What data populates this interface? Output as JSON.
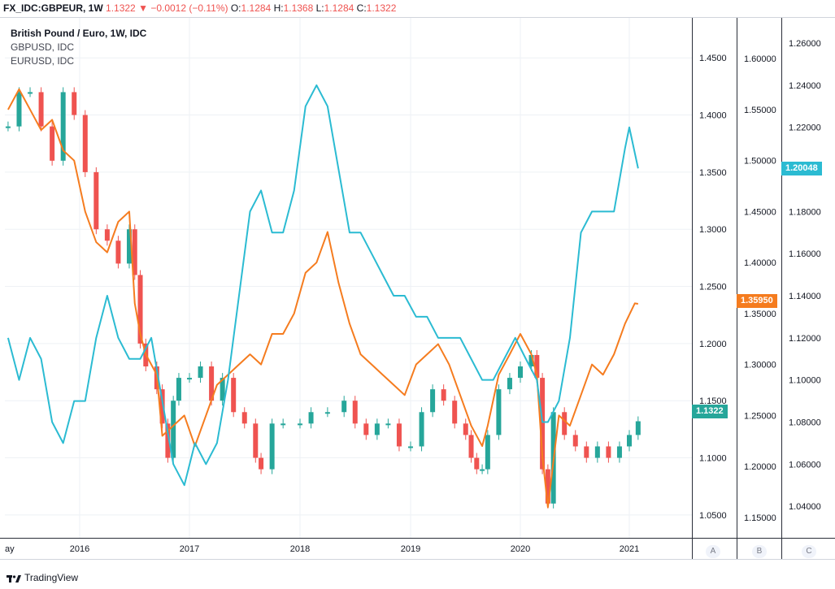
{
  "header": {
    "symbol": "FX_IDC:GBPEUR, 1W",
    "last": "1.1322",
    "change_arrow": "▼",
    "change": "−0.0012 (−0.11%)",
    "o_label": "O:",
    "o_value": "1.1284",
    "h_label": "H:",
    "h_value": "1.1368",
    "l_label": "L:",
    "l_value": "1.1284",
    "c_label": "C:",
    "c_value": "1.1322"
  },
  "legend": {
    "main": "British Pound / Euro, 1W, IDC",
    "series2": "GBPUSD, IDC",
    "series3": "EURUSD, IDC"
  },
  "scale_letters": {
    "a": "A",
    "b": "B",
    "c": "C"
  },
  "last_tags": {
    "gbpeur": "1.1322",
    "gbpusd": "1.35950",
    "eurusd": "1.20048"
  },
  "brand": "TradingView",
  "colors": {
    "up": "#26a69a",
    "down": "#ef5350",
    "gbpusd": "#f57c1f",
    "eurusd": "#2bbbd2",
    "grid": "#eef1f5",
    "axis_text": "#131722"
  },
  "chart_data": {
    "type": "line",
    "x_ticks": [
      "ay",
      "2016",
      "2017",
      "2018",
      "2019",
      "2020",
      "2021"
    ],
    "axes": {
      "A": {
        "ticks": [
          "1.4500",
          "1.4000",
          "1.3500",
          "1.3000",
          "1.2500",
          "1.2000",
          "1.1500",
          "1.1000",
          "1.0500"
        ],
        "range": [
          1.03,
          1.485
        ]
      },
      "B": {
        "ticks": [
          "1.60000",
          "1.55000",
          "1.50000",
          "1.45000",
          "1.40000",
          "1.35000",
          "1.30000",
          "1.25000",
          "1.20000",
          "1.15000"
        ],
        "range": [
          1.13,
          1.64
        ]
      },
      "C": {
        "ticks": [
          "1.26000",
          "1.24000",
          "1.22000",
          "1.20000",
          "1.18000",
          "1.16000",
          "1.14000",
          "1.12000",
          "1.10000",
          "1.08000",
          "1.06000",
          "1.04000"
        ],
        "range": [
          1.025,
          1.272
        ]
      }
    },
    "series": [
      {
        "name": "British Pound / Euro, 1W, IDC",
        "axis": "A",
        "style": "candles",
        "x": [
          2015.35,
          2015.45,
          2015.55,
          2015.65,
          2015.75,
          2015.85,
          2015.95,
          2016.05,
          2016.15,
          2016.25,
          2016.35,
          2016.45,
          2016.5,
          2016.55,
          2016.6,
          2016.7,
          2016.75,
          2016.8,
          2016.85,
          2016.9,
          2017.0,
          2017.1,
          2017.2,
          2017.3,
          2017.4,
          2017.5,
          2017.6,
          2017.65,
          2017.75,
          2017.85,
          2018.0,
          2018.1,
          2018.25,
          2018.4,
          2018.5,
          2018.6,
          2018.7,
          2018.8,
          2018.9,
          2019.0,
          2019.1,
          2019.2,
          2019.3,
          2019.4,
          2019.5,
          2019.55,
          2019.6,
          2019.65,
          2019.7,
          2019.8,
          2019.9,
          2020.0,
          2020.1,
          2020.15,
          2020.2,
          2020.25,
          2020.3,
          2020.4,
          2020.5,
          2020.6,
          2020.7,
          2020.8,
          2020.9,
          2021.0,
          2021.08
        ],
        "values": [
          1.39,
          1.42,
          1.42,
          1.39,
          1.36,
          1.42,
          1.4,
          1.35,
          1.3,
          1.29,
          1.27,
          1.3,
          1.26,
          1.2,
          1.18,
          1.16,
          1.13,
          1.1,
          1.15,
          1.17,
          1.17,
          1.18,
          1.15,
          1.17,
          1.14,
          1.13,
          1.1,
          1.09,
          1.13,
          1.13,
          1.13,
          1.14,
          1.14,
          1.15,
          1.13,
          1.12,
          1.13,
          1.13,
          1.11,
          1.11,
          1.14,
          1.16,
          1.15,
          1.13,
          1.12,
          1.1,
          1.09,
          1.09,
          1.12,
          1.16,
          1.17,
          1.18,
          1.19,
          1.17,
          1.09,
          1.06,
          1.14,
          1.12,
          1.11,
          1.1,
          1.11,
          1.1,
          1.11,
          1.12,
          1.132
        ]
      },
      {
        "name": "GBPUSD, IDC",
        "axis": "B",
        "x": [
          2015.35,
          2015.45,
          2015.55,
          2015.65,
          2015.75,
          2015.85,
          2015.95,
          2016.05,
          2016.15,
          2016.25,
          2016.35,
          2016.45,
          2016.5,
          2016.55,
          2016.6,
          2016.7,
          2016.75,
          2016.85,
          2016.95,
          2017.05,
          2017.15,
          2017.25,
          2017.35,
          2017.45,
          2017.55,
          2017.65,
          2017.75,
          2017.85,
          2017.95,
          2018.05,
          2018.15,
          2018.25,
          2018.35,
          2018.45,
          2018.55,
          2018.65,
          2018.75,
          2018.85,
          2018.95,
          2019.05,
          2019.15,
          2019.25,
          2019.35,
          2019.45,
          2019.55,
          2019.65,
          2019.7,
          2019.8,
          2019.9,
          2020.0,
          2020.1,
          2020.15,
          2020.2,
          2020.25,
          2020.35,
          2020.45,
          2020.55,
          2020.65,
          2020.75,
          2020.85,
          2020.95,
          2021.05,
          2021.08
        ],
        "values": [
          1.55,
          1.57,
          1.55,
          1.53,
          1.54,
          1.51,
          1.5,
          1.45,
          1.42,
          1.41,
          1.44,
          1.45,
          1.36,
          1.33,
          1.31,
          1.29,
          1.23,
          1.24,
          1.25,
          1.22,
          1.25,
          1.28,
          1.29,
          1.3,
          1.31,
          1.3,
          1.33,
          1.33,
          1.35,
          1.39,
          1.4,
          1.43,
          1.38,
          1.34,
          1.31,
          1.3,
          1.29,
          1.28,
          1.27,
          1.3,
          1.31,
          1.32,
          1.3,
          1.27,
          1.24,
          1.22,
          1.24,
          1.29,
          1.31,
          1.33,
          1.31,
          1.29,
          1.21,
          1.16,
          1.25,
          1.24,
          1.27,
          1.3,
          1.29,
          1.31,
          1.34,
          1.36,
          1.3595
        ]
      },
      {
        "name": "EURUSD, IDC",
        "axis": "C",
        "x": [
          2015.35,
          2015.45,
          2015.55,
          2015.65,
          2015.75,
          2015.85,
          2015.95,
          2016.05,
          2016.15,
          2016.25,
          2016.35,
          2016.45,
          2016.55,
          2016.65,
          2016.75,
          2016.85,
          2016.95,
          2017.05,
          2017.15,
          2017.25,
          2017.35,
          2017.45,
          2017.55,
          2017.65,
          2017.75,
          2017.85,
          2017.95,
          2018.05,
          2018.15,
          2018.25,
          2018.35,
          2018.45,
          2018.55,
          2018.65,
          2018.75,
          2018.85,
          2018.95,
          2019.05,
          2019.15,
          2019.25,
          2019.35,
          2019.45,
          2019.55,
          2019.65,
          2019.75,
          2019.85,
          2019.95,
          2020.05,
          2020.15,
          2020.2,
          2020.25,
          2020.35,
          2020.45,
          2020.55,
          2020.65,
          2020.75,
          2020.85,
          2020.95,
          2021.0,
          2021.08
        ],
        "values": [
          1.12,
          1.1,
          1.12,
          1.11,
          1.08,
          1.07,
          1.09,
          1.09,
          1.12,
          1.14,
          1.12,
          1.11,
          1.11,
          1.12,
          1.09,
          1.06,
          1.05,
          1.07,
          1.06,
          1.07,
          1.1,
          1.14,
          1.18,
          1.19,
          1.17,
          1.17,
          1.19,
          1.23,
          1.24,
          1.23,
          1.2,
          1.17,
          1.17,
          1.16,
          1.15,
          1.14,
          1.14,
          1.13,
          1.13,
          1.12,
          1.12,
          1.12,
          1.11,
          1.1,
          1.1,
          1.11,
          1.12,
          1.11,
          1.1,
          1.08,
          1.08,
          1.09,
          1.12,
          1.17,
          1.18,
          1.18,
          1.18,
          1.21,
          1.22,
          1.2005
        ]
      }
    ]
  }
}
